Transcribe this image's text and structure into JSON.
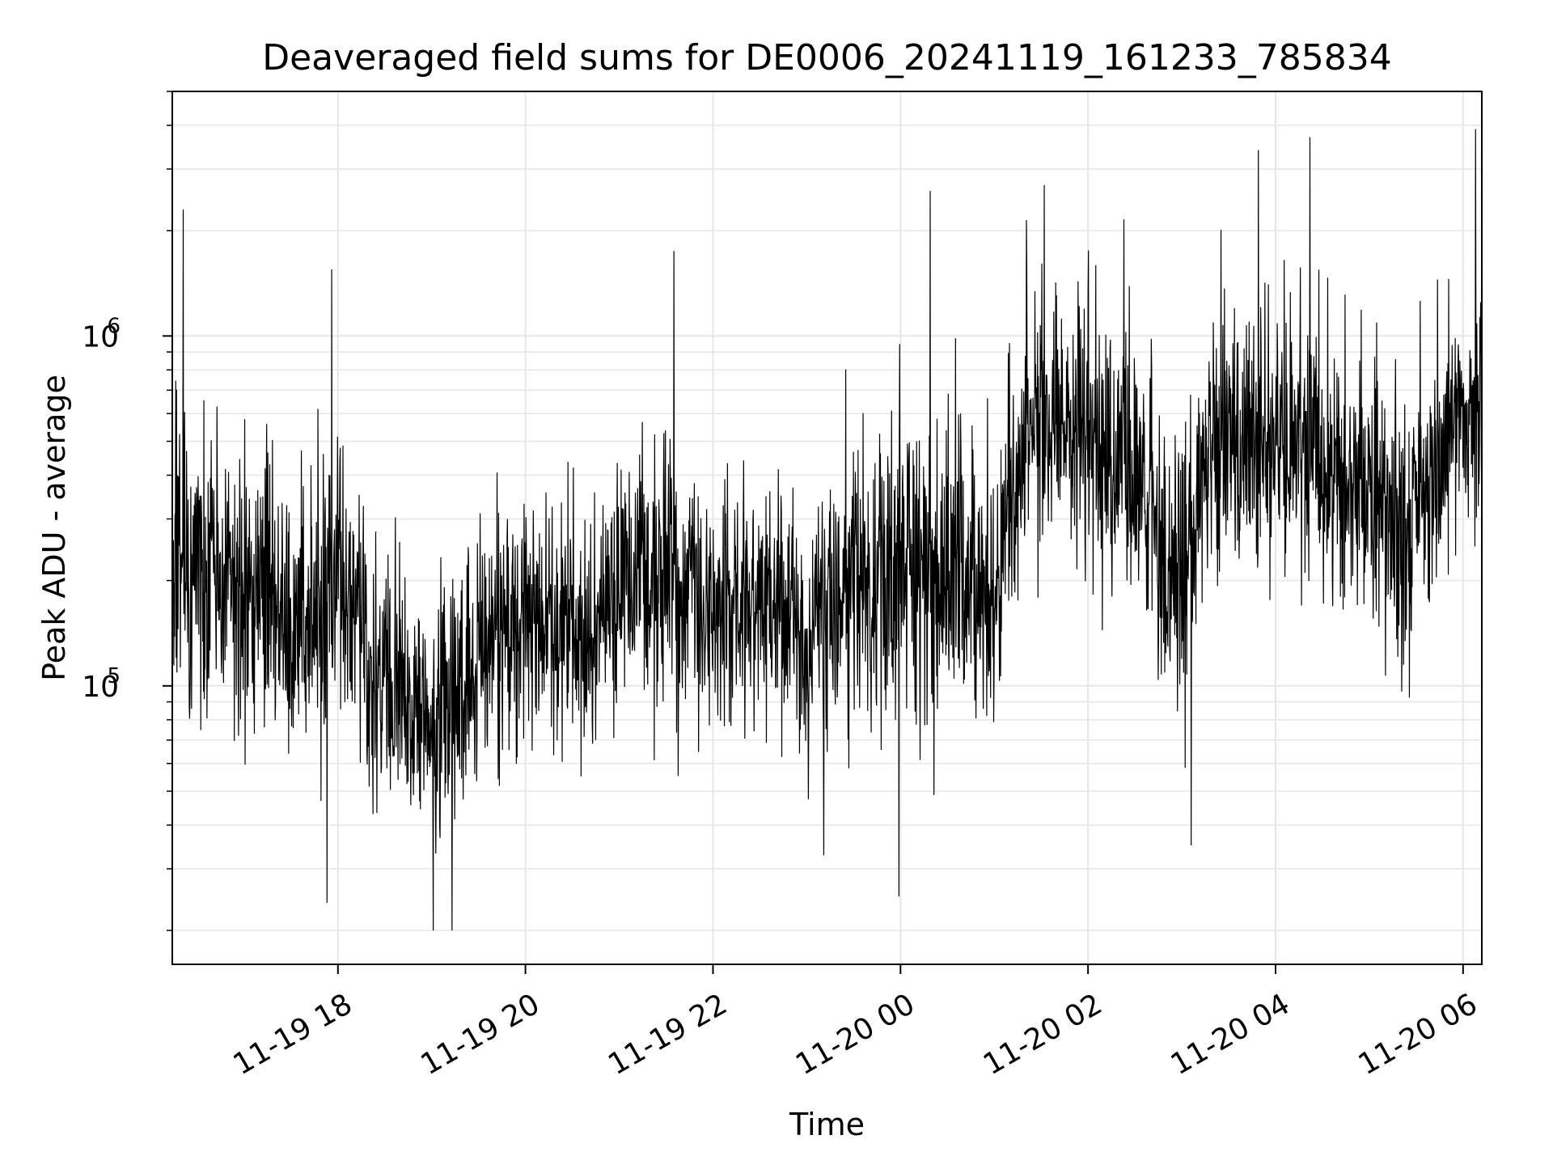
{
  "chart_data": {
    "type": "line",
    "title": "Deaveraged field sums for DE0006_20241119_161233_785834",
    "xlabel": "Time",
    "ylabel": "Peak ADU - average",
    "x_start": "2024-11-19 16:14",
    "x_end": "2024-11-20 06:12",
    "xlim": [
      "2024-11-19 16:14",
      "2024-11-20 06:12"
    ],
    "ylim": [
      16000,
      5000000
    ],
    "yscale": "log",
    "grid": true,
    "line_color": "#000000",
    "grid_color": "#e6e6e6",
    "xticks": [
      {
        "value": "2024-11-19 18:00",
        "label": "11-19 18"
      },
      {
        "value": "2024-11-19 20:00",
        "label": "11-19 20"
      },
      {
        "value": "2024-11-19 22:00",
        "label": "11-19 22"
      },
      {
        "value": "2024-11-20 00:00",
        "label": "11-20 00"
      },
      {
        "value": "2024-11-20 02:00",
        "label": "11-20 02"
      },
      {
        "value": "2024-11-20 04:00",
        "label": "11-20 04"
      },
      {
        "value": "2024-11-20 06:00",
        "label": "11-20 06"
      }
    ],
    "yticks": [
      {
        "value": 100000,
        "base": "10",
        "exp": "5"
      },
      {
        "value": 1000000,
        "base": "10",
        "exp": "6"
      }
    ],
    "series_envelope": [
      {
        "t": "2024-11-19 16:14",
        "median": 250000,
        "spread": 2.2
      },
      {
        "t": "2024-11-19 17:00",
        "median": 190000,
        "spread": 2.3
      },
      {
        "t": "2024-11-19 17:30",
        "median": 150000,
        "spread": 2.2
      },
      {
        "t": "2024-11-19 18:00",
        "median": 210000,
        "spread": 2.3
      },
      {
        "t": "2024-11-19 18:30",
        "median": 95000,
        "spread": 2.1
      },
      {
        "t": "2024-11-19 19:00",
        "median": 85000,
        "spread": 2.0
      },
      {
        "t": "2024-11-19 19:30",
        "median": 120000,
        "spread": 2.1
      },
      {
        "t": "2024-11-19 20:00",
        "median": 150000,
        "spread": 2.1
      },
      {
        "t": "2024-11-19 20:30",
        "median": 140000,
        "spread": 2.1
      },
      {
        "t": "2024-11-19 21:00",
        "median": 200000,
        "spread": 2.2
      },
      {
        "t": "2024-11-19 21:30",
        "median": 210000,
        "spread": 2.3
      },
      {
        "t": "2024-11-19 22:00",
        "median": 190000,
        "spread": 2.2
      },
      {
        "t": "2024-11-19 22:30",
        "median": 165000,
        "spread": 2.1
      },
      {
        "t": "2024-11-19 23:00",
        "median": 150000,
        "spread": 2.1
      },
      {
        "t": "2024-11-19 23:30",
        "median": 200000,
        "spread": 2.4
      },
      {
        "t": "2024-11-20 00:00",
        "median": 210000,
        "spread": 2.6
      },
      {
        "t": "2024-11-20 00:30",
        "median": 220000,
        "spread": 2.6
      },
      {
        "t": "2024-11-20 01:00",
        "median": 190000,
        "spread": 2.4
      },
      {
        "t": "2024-11-20 01:20",
        "median": 560000,
        "spread": 2.1
      },
      {
        "t": "2024-11-20 02:00",
        "median": 500000,
        "spread": 2.2
      },
      {
        "t": "2024-11-20 02:40",
        "median": 320000,
        "spread": 2.4
      },
      {
        "t": "2024-11-20 03:00",
        "median": 180000,
        "spread": 2.5
      },
      {
        "t": "2024-11-20 03:15",
        "median": 450000,
        "spread": 2.1
      },
      {
        "t": "2024-11-20 04:00",
        "median": 520000,
        "spread": 2.1
      },
      {
        "t": "2024-11-20 04:30",
        "median": 420000,
        "spread": 2.2
      },
      {
        "t": "2024-11-20 05:00",
        "median": 330000,
        "spread": 2.3
      },
      {
        "t": "2024-11-20 05:30",
        "median": 310000,
        "spread": 2.4
      },
      {
        "t": "2024-11-20 06:00",
        "median": 650000,
        "spread": 2.0
      },
      {
        "t": "2024-11-20 06:12",
        "median": 500000,
        "spread": 2.2
      }
    ],
    "notable_points": [
      {
        "t": "2024-11-19 16:21",
        "value": 2300000
      },
      {
        "t": "2024-11-19 17:56",
        "value": 1550000
      },
      {
        "t": "2024-11-19 17:53",
        "value": 24000
      },
      {
        "t": "2024-11-19 19:01",
        "value": 20000
      },
      {
        "t": "2024-11-19 19:13",
        "value": 20000
      },
      {
        "t": "2024-11-19 21:35",
        "value": 1750000
      },
      {
        "t": "2024-11-19 23:59",
        "value": 25000
      },
      {
        "t": "2024-11-20 00:19",
        "value": 2600000
      },
      {
        "t": "2024-11-20 01:32",
        "value": 2700000
      },
      {
        "t": "2024-11-20 03:06",
        "value": 35000
      },
      {
        "t": "2024-11-20 03:49",
        "value": 3400000
      },
      {
        "t": "2024-11-20 04:22",
        "value": 3700000
      },
      {
        "t": "2024-11-20 06:08",
        "value": 3900000
      }
    ]
  }
}
